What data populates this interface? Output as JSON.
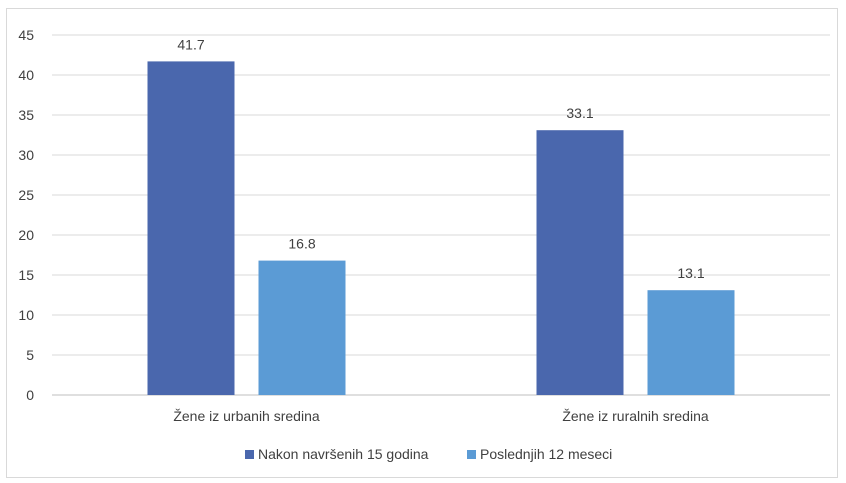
{
  "chart_data": {
    "type": "bar",
    "categories": [
      "Žene iz urbanih sredina",
      "Žene iz ruralnih sredina"
    ],
    "series": [
      {
        "name": "Nakon navršenih 15 godina",
        "values": [
          41.7,
          33.1
        ],
        "color": "#4a67ad"
      },
      {
        "name": "Poslednjih 12 meseci",
        "values": [
          16.8,
          13.1
        ],
        "color": "#5b9bd5"
      }
    ],
    "ylim": [
      0,
      45
    ],
    "yticks": [
      0,
      5,
      10,
      15,
      20,
      25,
      30,
      35,
      40,
      45
    ],
    "data_labels": [
      [
        "41.7",
        "33.1"
      ],
      [
        "16.8",
        "13.1"
      ]
    ],
    "grid": true,
    "legend_position": "bottom"
  }
}
